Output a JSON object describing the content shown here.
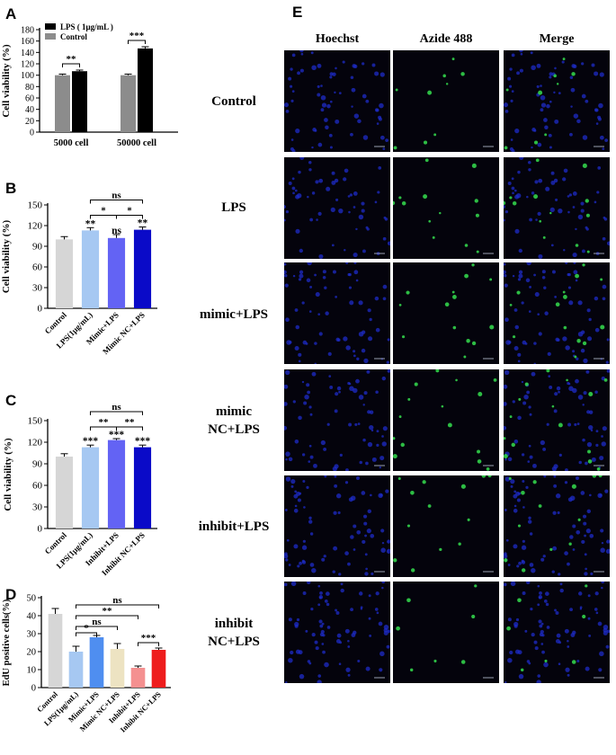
{
  "colors": {
    "black": "#000000",
    "grey": "#8c8c8c",
    "light_grey": "#d6d6d6",
    "light_blue": "#a6c8f2",
    "periwinkle": "#6363f4",
    "dark_blue": "#0a0ac8",
    "sky_blue": "#4f8ef0",
    "beige": "#ede3c2",
    "salmon": "#f49090",
    "red": "#ee1d1d",
    "hoechst": "#1e2cc8",
    "azide": "#32d24a"
  },
  "panels": {
    "a": "A",
    "b": "B",
    "c": "C",
    "d": "D",
    "e": "E"
  },
  "chart_data": [
    {
      "id": "A",
      "type": "bar",
      "ylabel": "Cell viability (%)",
      "ylim": [
        0,
        180
      ],
      "yticks": [
        0,
        20,
        40,
        60,
        80,
        100,
        120,
        140,
        160,
        180
      ],
      "groups": [
        "5000 cell",
        "50000 cell"
      ],
      "series": [
        {
          "name": "Control",
          "values": [
            100,
            100
          ],
          "errors": [
            2,
            2
          ],
          "color": "#8c8c8c"
        },
        {
          "name": "LPS ( 1μg/mL )",
          "values": [
            107,
            147
          ],
          "errors": [
            2,
            3
          ],
          "color": "#000000"
        }
      ],
      "legend": "top-left",
      "significance": [
        {
          "label": "**",
          "group": 0
        },
        {
          "label": "***",
          "group": 1
        }
      ]
    },
    {
      "id": "B",
      "type": "bar",
      "ylabel": "Cell viability (%)",
      "ylim": [
        0,
        150
      ],
      "yticks": [
        0,
        30,
        60,
        90,
        120,
        150
      ],
      "categories": [
        "Control",
        "LPS(1μg/mL)",
        "Mimic+LPS",
        "Mimic NC+LPS"
      ],
      "values": [
        100,
        113,
        102,
        114
      ],
      "errors": [
        4,
        4,
        5,
        4
      ],
      "colors": [
        "#d6d6d6",
        "#a6c8f2",
        "#6363f4",
        "#0a0ac8"
      ],
      "bar_labels": [
        "",
        "**",
        "ns",
        "**"
      ],
      "brackets": [
        {
          "from": 1,
          "to": 2,
          "label": "*"
        },
        {
          "from": 2,
          "to": 3,
          "label": "*"
        },
        {
          "from": 1,
          "to": 3,
          "label": "ns"
        }
      ]
    },
    {
      "id": "C",
      "type": "bar",
      "ylabel": "Cell viability (%)",
      "ylim": [
        0,
        150
      ],
      "yticks": [
        0,
        30,
        60,
        90,
        120,
        150
      ],
      "categories": [
        "Control",
        "LPS(1μg/mL)",
        "Inhibit+LPS",
        "Inhibit NC+LPS"
      ],
      "values": [
        100,
        113,
        123,
        113
      ],
      "errors": [
        4,
        3,
        2,
        3
      ],
      "colors": [
        "#d6d6d6",
        "#a6c8f2",
        "#6363f4",
        "#0a0ac8"
      ],
      "bar_labels": [
        "",
        "***",
        "***",
        "***"
      ],
      "brackets": [
        {
          "from": 1,
          "to": 2,
          "label": "**"
        },
        {
          "from": 2,
          "to": 3,
          "label": "**"
        },
        {
          "from": 1,
          "to": 3,
          "label": "ns"
        }
      ]
    },
    {
      "id": "D",
      "type": "bar",
      "ylabel": "EdU positive cells(%)",
      "ylim": [
        0,
        50
      ],
      "yticks": [
        0,
        10,
        20,
        30,
        40,
        50
      ],
      "categories": [
        "Control",
        "LPS(1μg/mL)",
        "Mimic+LPS",
        "Mimic NC+LPS",
        "Inhibit+LPS",
        "Inhibit NC+LPS"
      ],
      "values": [
        41,
        20,
        28,
        21.5,
        11,
        21
      ],
      "errors": [
        3,
        3,
        1,
        3,
        1,
        1
      ],
      "colors": [
        "#d6d6d6",
        "#a6c8f2",
        "#4f8ef0",
        "#ede3c2",
        "#f49090",
        "#ee1d1d"
      ],
      "brackets": [
        {
          "from": 1,
          "to": 2,
          "label": "*"
        },
        {
          "from": 4,
          "to": 5,
          "label": "***"
        },
        {
          "from": 1,
          "to": 3,
          "label": "ns"
        },
        {
          "from": 1,
          "to": 4,
          "label": "**"
        },
        {
          "from": 1,
          "to": 5,
          "label": "ns"
        }
      ]
    }
  ],
  "panel_e": {
    "columns": [
      "Hoechst",
      "Azide 488",
      "Merge"
    ],
    "rows": [
      "Control",
      "LPS",
      "mimic+LPS",
      "mimic\nNC+LPS",
      "inhibit+LPS",
      "inhibit\nNC+LPS"
    ]
  }
}
